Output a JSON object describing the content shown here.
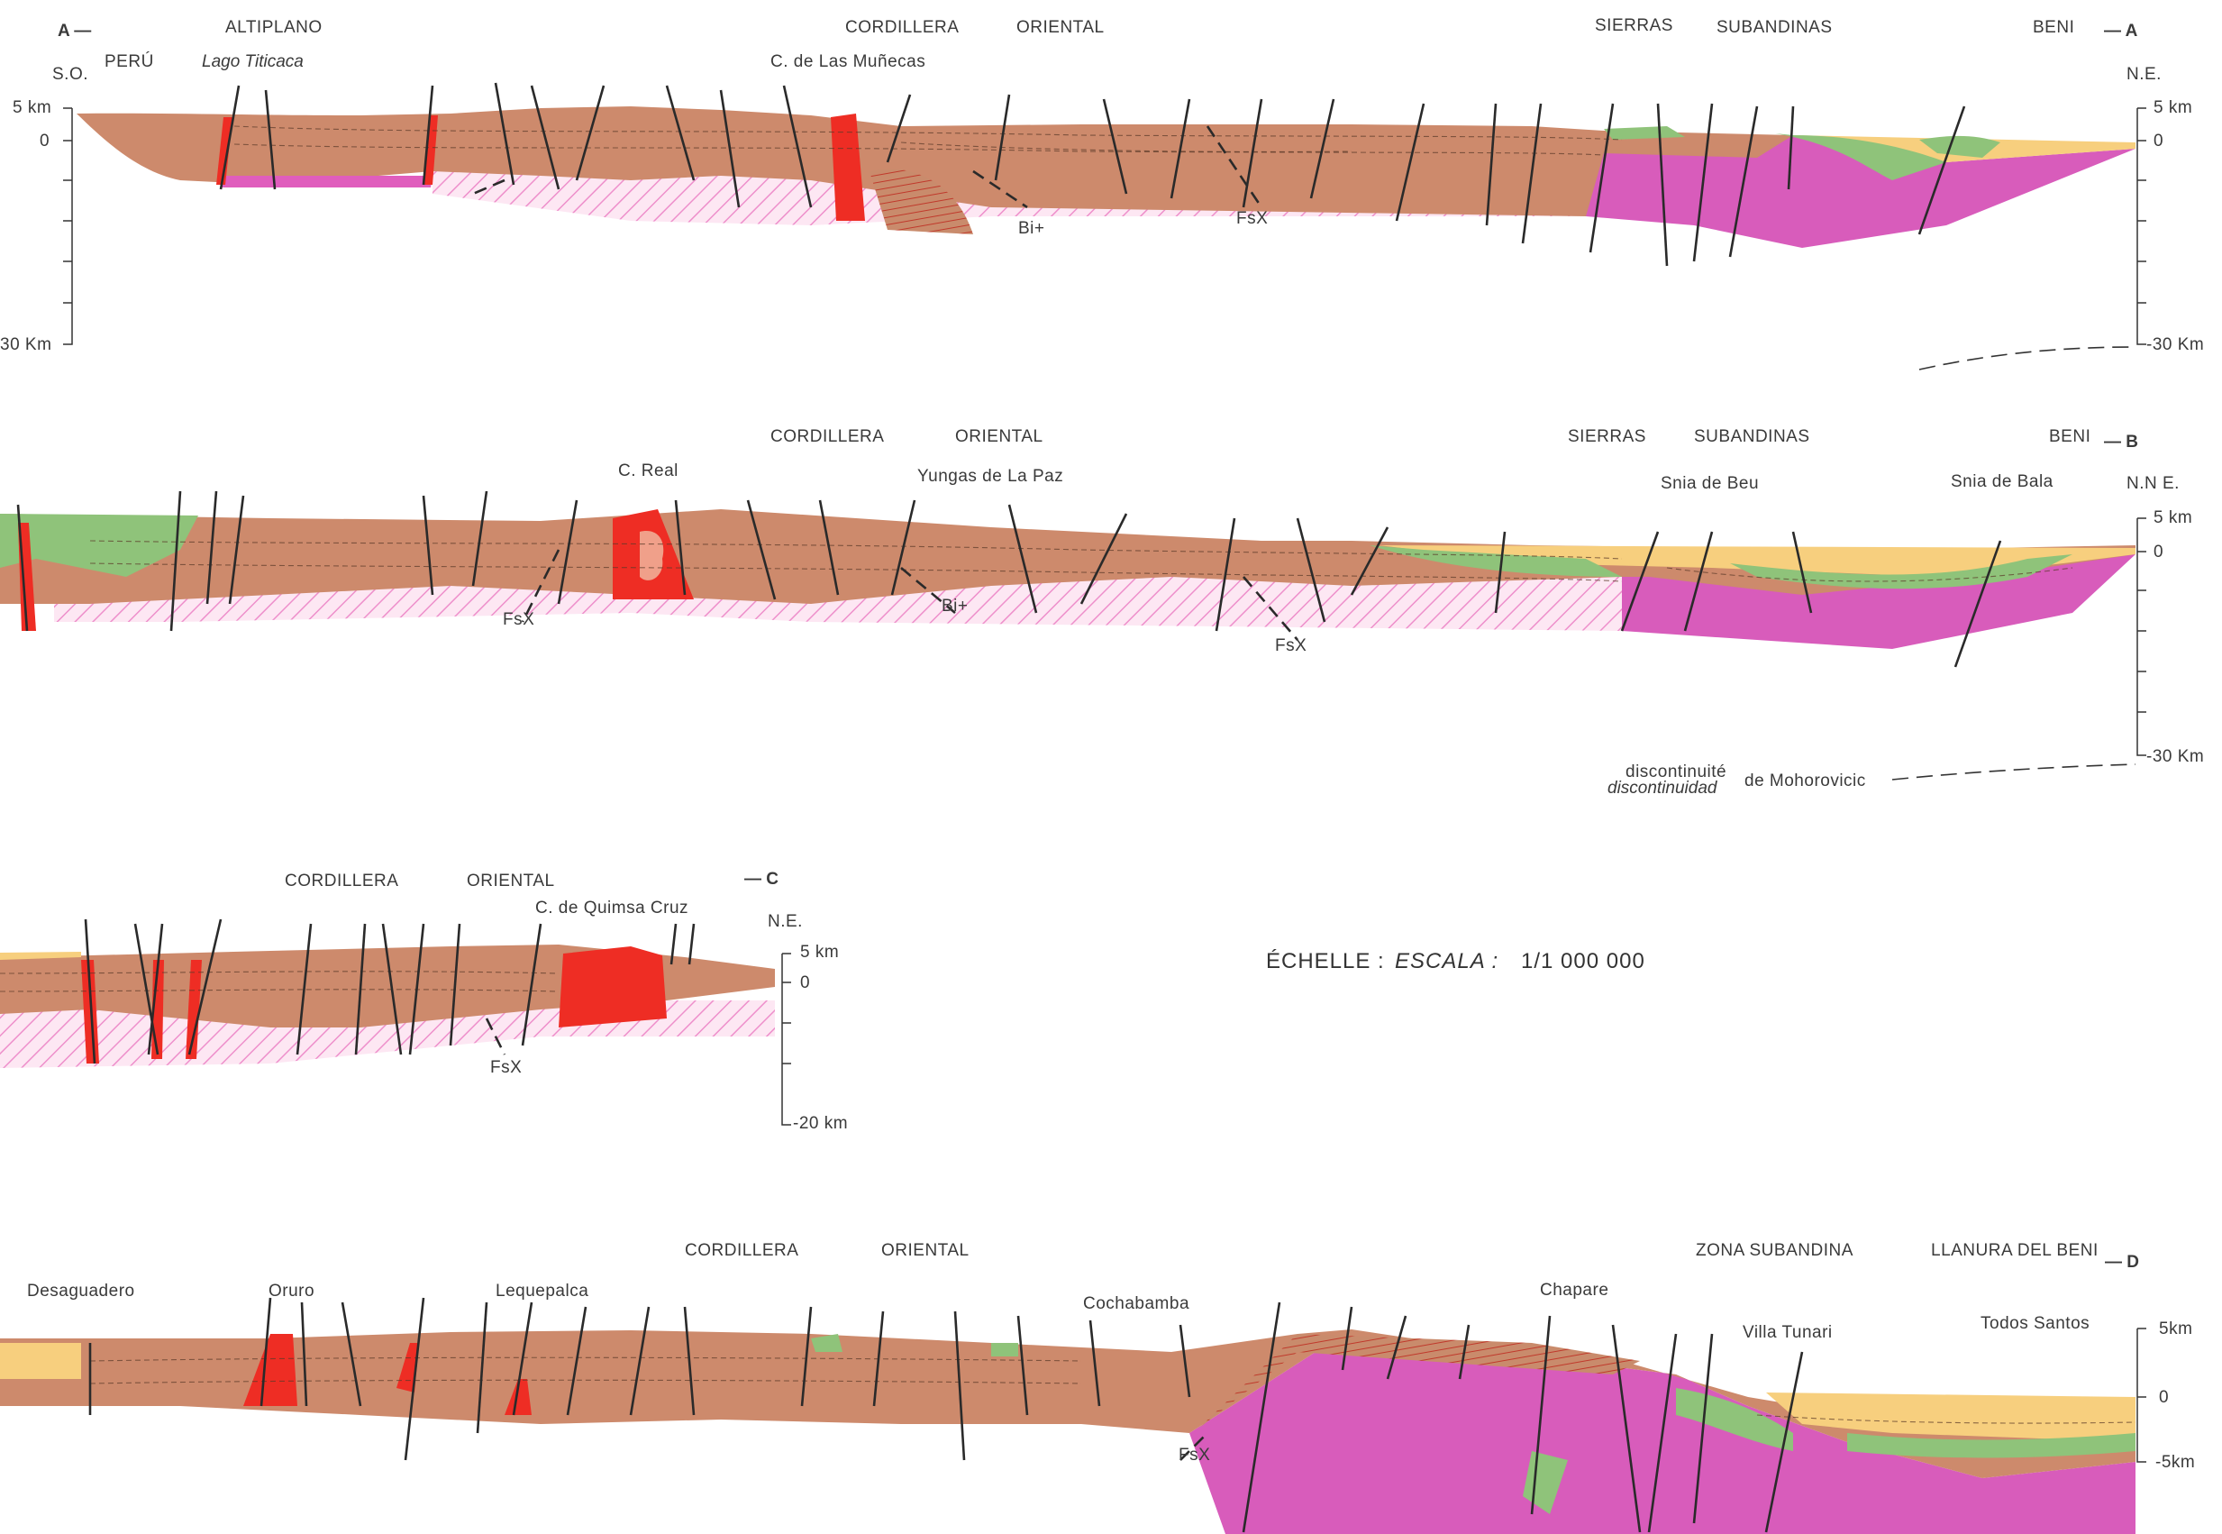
{
  "section_a": {
    "end_left": "A —",
    "end_right": "— A",
    "dir_left": "S.O.",
    "dir_right": "N.E.",
    "altiplano": "ALTIPLANO",
    "peru": "PERÚ",
    "lago": "Lago Titicaca",
    "cordillera": "CORDILLERA",
    "oriental": "ORIENTAL",
    "munecas": "C. de Las Muñecas",
    "sierras": "SIERRAS",
    "subandinas": "SUBANDINAS",
    "beni": "BENI",
    "bi": "Bi+",
    "fsx": "FsX",
    "scale_left": [
      "5 km",
      "0",
      "30 Km"
    ],
    "scale_right": [
      "5 km",
      "0",
      "-30 Km"
    ]
  },
  "section_b": {
    "end_right": "— B",
    "dir_right": "N.N E.",
    "cordillera": "CORDILLERA",
    "oriental": "ORIENTAL",
    "real": "C. Real",
    "yungas": "Yungas de La Paz",
    "sierras": "SIERRAS",
    "subandinas": "SUBANDINAS",
    "beni": "BENI",
    "beu": "Snia de Beu",
    "bala": "Snia de Bala",
    "fsx": "FsX",
    "bi": "Bi+",
    "moho_fr": "discontinuité",
    "moho_es": "discontinuidad",
    "moho_name": "de Mohorovicic",
    "scale_right": [
      "5 km",
      "0",
      "-30 Km"
    ]
  },
  "section_c": {
    "end_right": "— C",
    "dir_right": "N.E.",
    "cordillera": "CORDILLERA",
    "oriental": "ORIENTAL",
    "quimsa": "C. de Quimsa Cruz",
    "fsx": "FsX",
    "scale": [
      "5 km",
      "0",
      "-20 km"
    ]
  },
  "scale_note": {
    "fr": "ÉCHELLE :",
    "es": "ESCALA :",
    "ratio": "1/1 000 000"
  },
  "section_d": {
    "end_right": "— D",
    "desaguadero": "Desaguadero",
    "oruro": "Oruro",
    "lequepalca": "Lequepalca",
    "cordillera": "CORDILLERA",
    "oriental": "ORIENTAL",
    "cochabamba": "Cochabamba",
    "chapare": "Chapare",
    "zona": "ZONA SUBANDINA",
    "llanura": "LLANURA DEL BENI",
    "villa": "Villa Tunari",
    "todos": "Todos Santos",
    "fsx": "FsX",
    "scale_right": [
      "5km",
      "0",
      "-5km"
    ]
  },
  "colors": {
    "brown": "#cd8a6c",
    "brown_dark": "#b66e52",
    "pink_hatch": "#f1a6d4",
    "magenta": "#d85cbb",
    "green": "#8fc37a",
    "yellow": "#f7cf7e",
    "red": "#ee2d24",
    "pale_red": "#f0a08a"
  }
}
